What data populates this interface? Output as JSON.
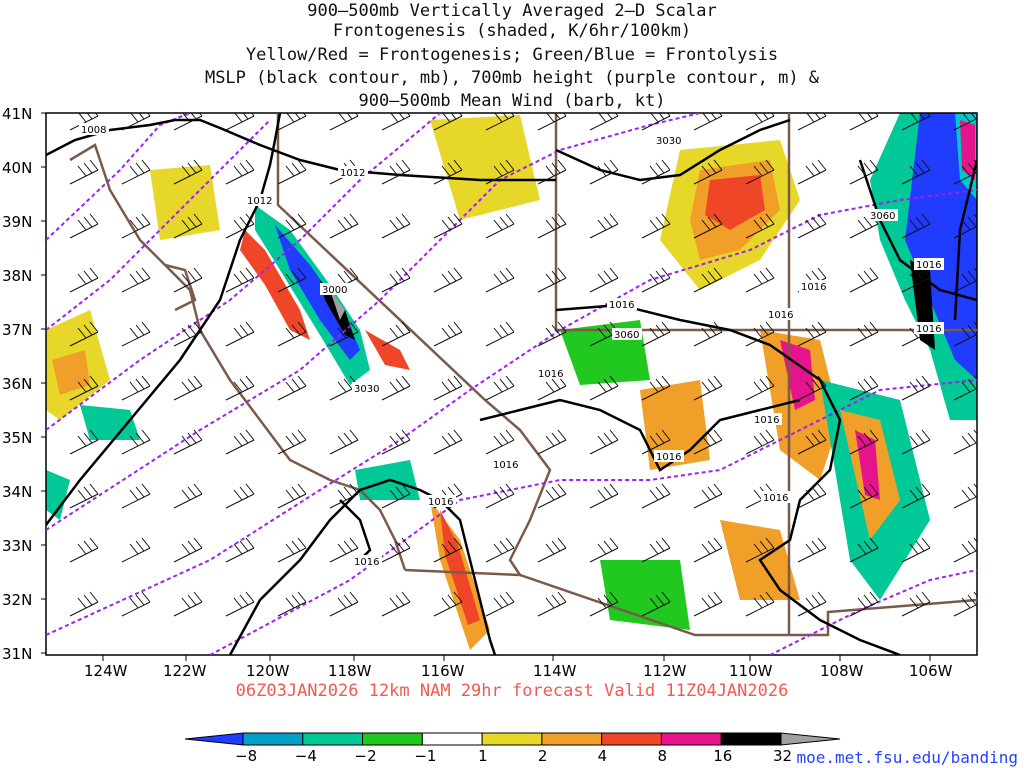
{
  "title": {
    "line1": "900–500mb Vertically Averaged 2–D Scalar",
    "line2": "Frontogenesis (shaded, K/6hr/100km)",
    "line3": "Yellow/Red = Frontogenesis;  Green/Blue = Frontolysis",
    "line4": "MSLP (black contour, mb), 700mb height (purple contour, m) &",
    "line5": "900–500mb Mean Wind (barb, kt)"
  },
  "lat_labels": [
    "41N",
    "40N",
    "39N",
    "38N",
    "37N",
    "36N",
    "35N",
    "34N",
    "33N",
    "32N",
    "31N"
  ],
  "lon_labels": [
    "124W",
    "122W",
    "120W",
    "118W",
    "116W",
    "114W",
    "112W",
    "110W",
    "108W",
    "106W"
  ],
  "contour_labels": {
    "mslp": [
      "1008",
      "1012",
      "1012",
      "1016",
      "1016",
      "1016",
      "1016",
      "1016",
      "1016",
      "1016",
      "1016",
      "1016",
      "1016",
      "1016",
      "1016",
      "1016"
    ],
    "height": [
      "3000",
      "3030",
      "3030",
      "3060",
      "3060"
    ]
  },
  "valid_text": "06Z03JAN2026 12km NAM 29hr forecast Valid 11Z04JAN2026",
  "colorbar": {
    "labels": [
      "−8",
      "−4",
      "−2",
      "−1",
      "1",
      "2",
      "4",
      "8",
      "16",
      "32"
    ],
    "colors": [
      "#1f3cff",
      "#00a0c8",
      "#00c896",
      "#20c820",
      "#ffffff",
      "#e6d728",
      "#f0a028",
      "#f04628",
      "#e6148c",
      "#000000",
      "#a0a0a0"
    ]
  },
  "credit": "moe.met.fsu.edu/banding",
  "colors": {
    "title": "#111111",
    "valid": "#f05a50",
    "credit": "#2840ff",
    "mslp": "#000000",
    "height": "#a020f0",
    "border": "#7a5a48"
  }
}
